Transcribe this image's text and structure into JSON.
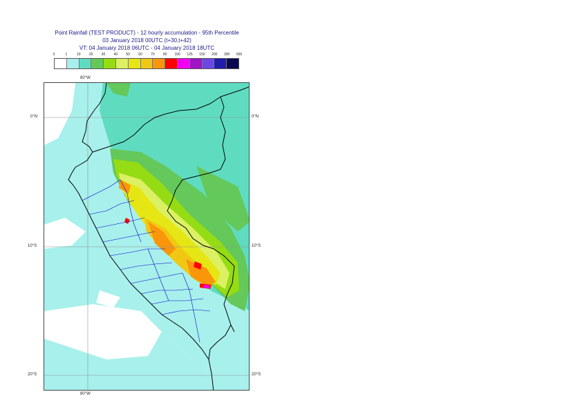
{
  "header": {
    "line1": "Point Rainfall (TEST PRODUCT) - 12 hourly accumulation - 95th Percentile",
    "line2": "03 January 2018 00UTC (t+30,t+42)",
    "line3": "VT: 04 January 2018 06UTC - 04 January 2018 18UTC"
  },
  "legend": {
    "ticks": [
      "0",
      "1",
      "10",
      "20",
      "30",
      "40",
      "50",
      "60",
      "70",
      "80",
      "100",
      "125",
      "150",
      "200",
      "300",
      "500"
    ],
    "colors": [
      "#ffffff",
      "#a8f0ec",
      "#5fdcc0",
      "#64c85a",
      "#96dc14",
      "#dcf064",
      "#e6e614",
      "#f0c814",
      "#fa960a",
      "#ff0000",
      "#f000f0",
      "#a014c8",
      "#6e46e6",
      "#1e1eaa",
      "#0a0a50"
    ]
  },
  "map": {
    "colors": {
      "ocean_light": "#ffffff",
      "ocean_rain": "#a8f0ec",
      "land_light": "#a8f0ec",
      "teal": "#5fdcc0",
      "green": "#64c85a",
      "yellowgreen": "#96dc14",
      "paleyellow": "#dcf064",
      "yellow": "#e6e614",
      "gold": "#f0c814",
      "orange": "#fa960a",
      "red": "#ff0000",
      "magenta": "#f000f0",
      "coast": "#000000",
      "borders": "#0000cc",
      "grid": "#909090"
    },
    "grid_labels": {
      "top_lon": "80°W",
      "bottom_lon": "80°W",
      "left_lat_0": "0°N",
      "left_lat_10": "10°S",
      "left_lat_20": "20°S",
      "right_lat_0": "0°N",
      "right_lat_10": "10°S",
      "right_lat_20": "20°S"
    }
  }
}
